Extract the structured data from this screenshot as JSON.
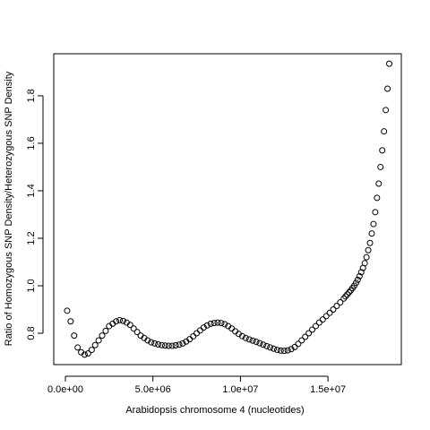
{
  "chart_data": {
    "type": "scatter",
    "xlabel": "Arabidopsis chromosome 4 (nucleotides)",
    "ylabel": "Ratio of Homozygous SNP Density/Heterozygous SNP Density",
    "color": "#000000",
    "x": [
      100000,
      300000,
      500000,
      700000,
      900000,
      1100000,
      1300000,
      1500000,
      1700000,
      1900000,
      2100000,
      2300000,
      2500000,
      2700000,
      2900000,
      3100000,
      3300000,
      3500000,
      3700000,
      3900000,
      4100000,
      4300000,
      4500000,
      4700000,
      4900000,
      5100000,
      5300000,
      5500000,
      5700000,
      5900000,
      6100000,
      6300000,
      6500000,
      6700000,
      6900000,
      7100000,
      7300000,
      7500000,
      7700000,
      7900000,
      8100000,
      8300000,
      8500000,
      8700000,
      8900000,
      9100000,
      9300000,
      9500000,
      9700000,
      9900000,
      10100000,
      10300000,
      10500000,
      10700000,
      10900000,
      11100000,
      11300000,
      11500000,
      11700000,
      11900000,
      12100000,
      12300000,
      12500000,
      12700000,
      12900000,
      13100000,
      13300000,
      13500000,
      13700000,
      13900000,
      14100000,
      14300000,
      14500000,
      14700000,
      14900000,
      15100000,
      15300000,
      15500000,
      15700000,
      15900000,
      16000000,
      16100000,
      16200000,
      16300000,
      16400000,
      16500000,
      16600000,
      16700000,
      16800000,
      16900000,
      17000000,
      17100000,
      17200000,
      17300000,
      17400000,
      17500000,
      17600000,
      17700000,
      17800000,
      17900000,
      18000000,
      18100000,
      18200000,
      18300000,
      18400000,
      18500000
    ],
    "values": [
      0.895,
      0.85,
      0.79,
      0.74,
      0.72,
      0.71,
      0.715,
      0.73,
      0.75,
      0.77,
      0.79,
      0.81,
      0.83,
      0.84,
      0.85,
      0.855,
      0.852,
      0.845,
      0.835,
      0.82,
      0.805,
      0.79,
      0.78,
      0.77,
      0.762,
      0.757,
      0.753,
      0.75,
      0.748,
      0.747,
      0.747,
      0.749,
      0.752,
      0.757,
      0.765,
      0.775,
      0.787,
      0.8,
      0.812,
      0.824,
      0.833,
      0.84,
      0.843,
      0.845,
      0.843,
      0.838,
      0.83,
      0.82,
      0.808,
      0.797,
      0.788,
      0.78,
      0.774,
      0.769,
      0.764,
      0.758,
      0.752,
      0.746,
      0.74,
      0.735,
      0.73,
      0.727,
      0.726,
      0.728,
      0.733,
      0.742,
      0.755,
      0.77,
      0.785,
      0.8,
      0.815,
      0.83,
      0.845,
      0.858,
      0.872,
      0.886,
      0.9,
      0.915,
      0.93,
      0.946,
      0.955,
      0.963,
      0.972,
      0.98,
      0.99,
      1.0,
      1.012,
      1.025,
      1.04,
      1.057,
      1.075,
      1.095,
      1.12,
      1.15,
      1.18,
      1.22,
      1.26,
      1.31,
      1.37,
      1.43,
      1.5,
      1.57,
      1.65,
      1.74,
      1.83,
      1.935
    ],
    "xlim": [
      -665000,
      19190000
    ],
    "ylim": [
      0.668,
      1.977
    ],
    "xticks": [
      {
        "value": 0,
        "label": "0.0e+00"
      },
      {
        "value": 5000000,
        "label": "5.0e+06"
      },
      {
        "value": 10000000,
        "label": "1.0e+07"
      },
      {
        "value": 15000000,
        "label": "1.5e+07"
      }
    ],
    "yticks": [
      0.8,
      {
        "value": 1.0,
        "label": "1.0"
      },
      1.2,
      1.4,
      1.6,
      1.8
    ]
  }
}
